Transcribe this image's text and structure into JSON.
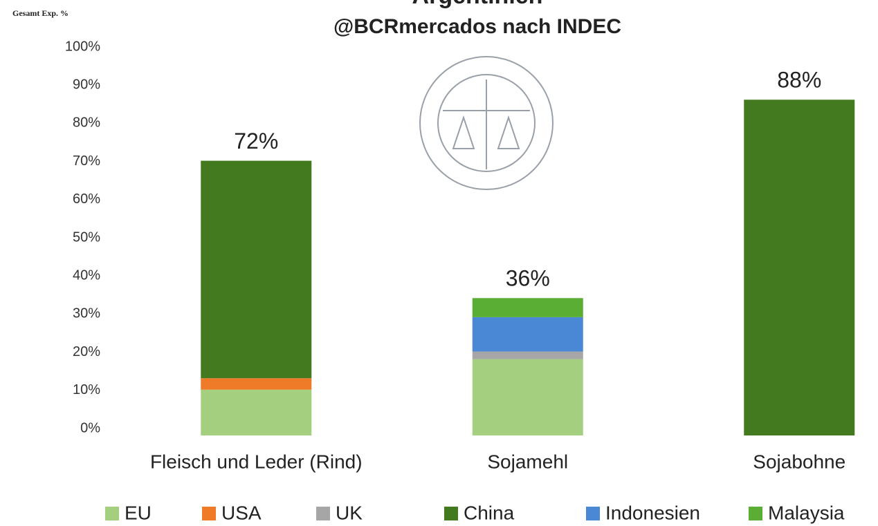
{
  "chart_data": {
    "type": "stacked_bar",
    "title": "Argentinien",
    "subtitle": "@BCRmercados nach INDEC",
    "y_label": "Gesamt Exp. %",
    "categories": [
      "Fleisch und Leder (Rind)",
      "Sojamehl",
      "Sojabohne"
    ],
    "series": [
      {
        "name": "EU",
        "color": "#a3cf7f",
        "values": [
          12,
          20,
          0
        ]
      },
      {
        "name": "USA",
        "color": "#ef7a27",
        "values": [
          3,
          0,
          0
        ]
      },
      {
        "name": "UK",
        "color": "#a6a6a6",
        "values": [
          0,
          2,
          0
        ]
      },
      {
        "name": "China",
        "color": "#437a1f",
        "values": [
          57,
          0,
          88
        ]
      },
      {
        "name": "Indonesien",
        "color": "#4a88d6",
        "values": [
          0,
          9,
          0
        ]
      },
      {
        "name": "Malaysia",
        "color": "#5aae34",
        "values": [
          0,
          5,
          0
        ]
      }
    ],
    "totals": [
      72,
      36,
      88
    ],
    "total_labels": [
      "72%",
      "36%",
      "88%"
    ],
    "ylim": [
      0,
      100
    ],
    "yticks": [
      {
        "value": 0,
        "label": "0%"
      },
      {
        "value": 10,
        "label": "10%"
      },
      {
        "value": 20,
        "label": "20%"
      },
      {
        "value": 30,
        "label": "30%"
      },
      {
        "value": 40,
        "label": "40%"
      },
      {
        "value": 50,
        "label": "50%"
      },
      {
        "value": 60,
        "label": "60%"
      },
      {
        "value": 70,
        "label": "70%"
      },
      {
        "value": 80,
        "label": "80%"
      },
      {
        "value": 90,
        "label": "90%"
      },
      {
        "value": 100,
        "label": "100%"
      }
    ],
    "grid": false,
    "legend": "bottom"
  }
}
